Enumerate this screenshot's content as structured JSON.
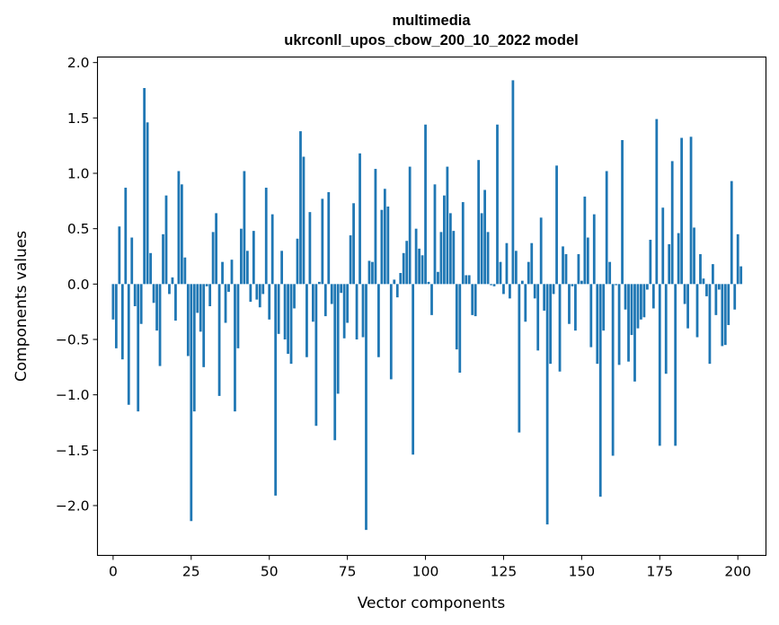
{
  "chart_data": {
    "type": "bar",
    "title_line1": "multimedia",
    "title_line2": "ukrconll_upos_cbow_200_10_2022 model",
    "xlabel": "Vector components",
    "ylabel": "Components values",
    "xlim": [
      -5,
      209
    ],
    "ylim": [
      -2.45,
      2.05
    ],
    "xticks": [
      0,
      25,
      50,
      75,
      100,
      125,
      150,
      175,
      200
    ],
    "xtick_labels": [
      "0",
      "25",
      "50",
      "75",
      "100",
      "125",
      "150",
      "175",
      "200"
    ],
    "yticks": [
      2.0,
      1.5,
      1.0,
      0.5,
      0.0,
      -0.5,
      -1.0,
      -1.5,
      -2.0
    ],
    "ytick_labels": [
      "2.0",
      "1.5",
      "1.0",
      "0.5",
      "0.0",
      "−0.5",
      "−1.0",
      "−1.5",
      "−2.0"
    ],
    "bar_color": "#1f77b4",
    "values": [
      -0.32,
      -0.58,
      0.52,
      -0.68,
      0.87,
      -1.09,
      0.42,
      -0.2,
      -1.15,
      -0.36,
      1.77,
      1.46,
      0.28,
      -0.17,
      -0.42,
      -0.74,
      0.45,
      0.8,
      -0.09,
      0.06,
      -0.33,
      1.02,
      0.9,
      0.24,
      -0.65,
      -2.14,
      -1.15,
      -0.26,
      -0.43,
      -0.75,
      -0.02,
      -0.2,
      0.47,
      0.64,
      -1.01,
      0.2,
      -0.35,
      -0.07,
      0.22,
      -1.15,
      -0.58,
      0.5,
      1.02,
      0.3,
      -0.16,
      0.48,
      -0.14,
      -0.21,
      -0.09,
      0.87,
      -0.32,
      0.63,
      -1.91,
      -0.45,
      0.3,
      -0.5,
      -0.63,
      -0.72,
      -0.22,
      0.41,
      1.38,
      1.15,
      -0.66,
      0.65,
      -0.34,
      -1.28,
      0.02,
      0.77,
      -0.29,
      0.83,
      -0.18,
      -1.41,
      -0.99,
      -0.08,
      -0.49,
      -0.35,
      0.44,
      0.73,
      -0.5,
      1.18,
      -0.48,
      -2.22,
      0.21,
      0.2,
      1.04,
      -0.66,
      0.67,
      0.86,
      0.7,
      -0.86,
      0.04,
      -0.12,
      0.1,
      0.28,
      0.39,
      1.06,
      -1.54,
      0.5,
      0.32,
      0.26,
      1.44,
      0.02,
      -0.28,
      0.9,
      0.11,
      0.47,
      0.8,
      1.06,
      0.64,
      0.48,
      -0.59,
      -0.8,
      0.74,
      0.08,
      0.08,
      -0.28,
      -0.29,
      1.12,
      0.64,
      0.85,
      0.47,
      -0.01,
      -0.02,
      1.44,
      0.2,
      -0.09,
      0.37,
      -0.13,
      1.84,
      0.3,
      -1.34,
      0.03,
      -0.34,
      0.2,
      0.37,
      -0.13,
      -0.6,
      0.6,
      -0.24,
      -2.17,
      -0.72,
      -0.09,
      1.07,
      -0.79,
      0.34,
      0.27,
      -0.36,
      -0.02,
      -0.42,
      0.27,
      0.03,
      0.79,
      0.42,
      -0.57,
      0.63,
      -0.72,
      -1.92,
      -0.42,
      1.02,
      0.2,
      -1.55,
      -0.01,
      -0.73,
      1.3,
      -0.23,
      -0.7,
      -0.46,
      -0.88,
      -0.4,
      -0.32,
      -0.3,
      -0.05,
      0.4,
      -0.22,
      1.49,
      -1.46,
      0.69,
      -0.81,
      0.36,
      1.11,
      -1.46,
      0.46,
      1.32,
      -0.18,
      -0.4,
      1.33,
      0.51,
      -0.48,
      0.27,
      0.05,
      -0.11,
      -0.72,
      0.18,
      -0.28,
      -0.05,
      -0.56,
      -0.55,
      -0.37,
      0.93,
      -0.23,
      0.45,
      0.16
    ]
  }
}
